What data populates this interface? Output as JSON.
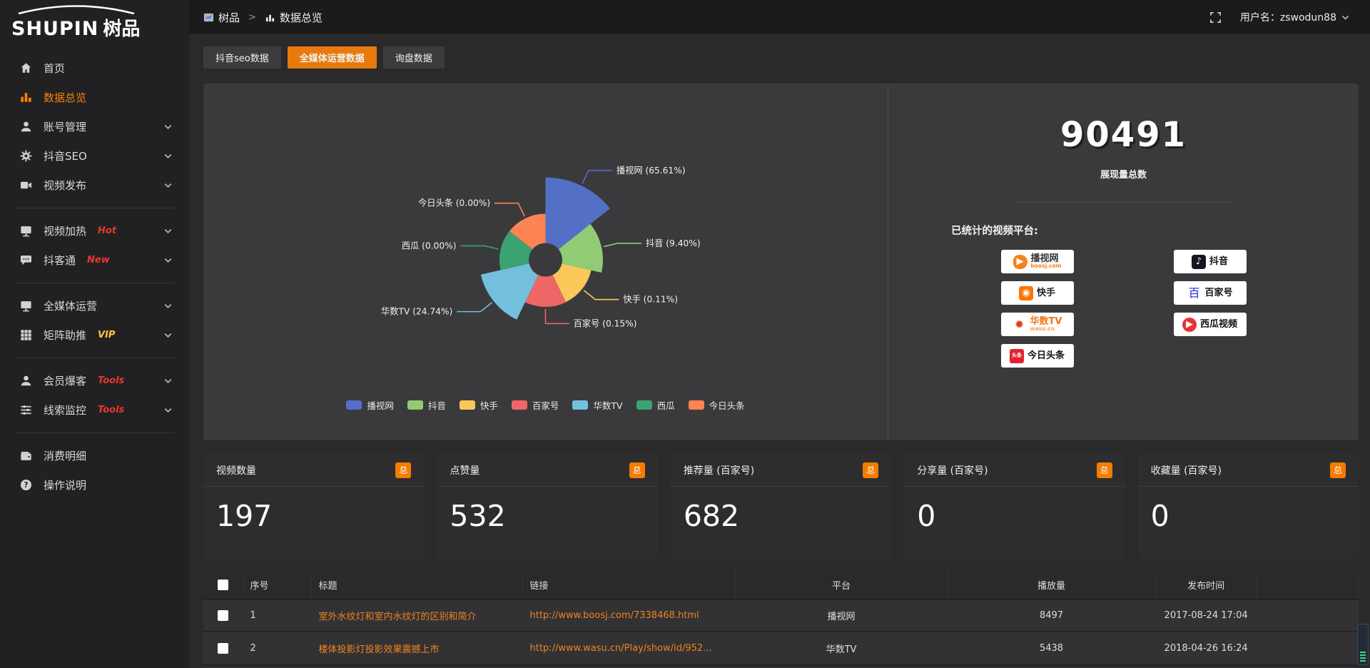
{
  "colors": {
    "accent_orange": "#e8790c",
    "badge_orange": "#f57c00",
    "link_orange": "#f0831e",
    "hot_red": "#e8372c",
    "vip_yellow": "#ffc93c"
  },
  "sidebar": {
    "logo_en": "SHUPIN",
    "logo_cn": "树品",
    "items": [
      {
        "label": "首页",
        "icon": "home-icon"
      },
      {
        "label": "数据总览",
        "icon": "chart-icon",
        "active": true
      },
      {
        "label": "账号管理",
        "icon": "user-icon",
        "chevron": true
      },
      {
        "label": "抖音SEO",
        "icon": "gear-icon",
        "chevron": true
      },
      {
        "label": "视频发布",
        "icon": "video-icon",
        "chevron": true,
        "divider_after": true
      },
      {
        "label": "视频加热",
        "icon": "screen-icon",
        "badge": "Hot",
        "badge_style": "red",
        "chevron": true
      },
      {
        "label": "抖客通",
        "icon": "chat-icon",
        "badge": "New",
        "badge_style": "red",
        "chevron": true,
        "divider_after": true
      },
      {
        "label": "全媒体运营",
        "icon": "monitor-icon",
        "chevron": true
      },
      {
        "label": "矩阵助推",
        "icon": "grid-icon",
        "badge": "VIP",
        "badge_style": "vip",
        "chevron": true,
        "divider_after": true
      },
      {
        "label": "会员爆客",
        "icon": "member-icon",
        "badge": "Tools",
        "badge_style": "red",
        "chevron": true
      },
      {
        "label": "线索监控",
        "icon": "sliders-icon",
        "badge": "Tools",
        "badge_style": "red",
        "chevron": true,
        "divider_after": true
      },
      {
        "label": "消费明细",
        "icon": "wallet-icon"
      },
      {
        "label": "操作说明",
        "icon": "question-icon"
      }
    ]
  },
  "topbar": {
    "breadcrumb": {
      "root": "树品",
      "separator": ">",
      "current": "数据总览"
    },
    "username": "用户名：zswodun88"
  },
  "tabs": [
    {
      "label": "抖音seo数据",
      "active": false
    },
    {
      "label": "全媒体运营数据",
      "active": true
    },
    {
      "label": "询盘数据",
      "active": false
    }
  ],
  "chart_data": {
    "type": "pie",
    "style": "rose",
    "legend_position": "bottom",
    "slices": [
      {
        "name": "播视网",
        "percent": 65.61,
        "label": "播视网 (65.61%)",
        "color": "#5470c6"
      },
      {
        "name": "抖音",
        "percent": 9.4,
        "label": "抖音 (9.40%)",
        "color": "#91cc75"
      },
      {
        "name": "快手",
        "percent": 0.11,
        "label": "快手 (0.11%)",
        "color": "#fac858"
      },
      {
        "name": "百家号",
        "percent": 0.15,
        "label": "百家号 (0.15%)",
        "color": "#ee6666"
      },
      {
        "name": "华数TV",
        "percent": 24.74,
        "label": "华数TV (24.74%)",
        "color": "#73c0de"
      },
      {
        "name": "西瓜",
        "percent": 0.0,
        "label": "西瓜 (0.00%)",
        "color": "#3ba272"
      },
      {
        "name": "今日头条",
        "percent": 0.0,
        "label": "今日头条 (0.00%)",
        "color": "#fc8452"
      }
    ]
  },
  "summary": {
    "total": "90491",
    "total_label": "展现量总数",
    "platforms_label": "已统计的视频平台:",
    "platform_badges": [
      {
        "name": "播视网",
        "sub": "boosj.com",
        "icon": "boosj-logo",
        "shape": "blob",
        "bg": "#f5821f",
        "glyph": "▶",
        "glyph_color": "#ffffff",
        "name_color": "#333333",
        "sub_color": "#f5821f"
      },
      {
        "name": "抖音",
        "icon": "douyin-logo",
        "shape": "square",
        "bg": "#16161f",
        "glyph": "♪",
        "glyph_color": "#ffffff",
        "name_color": "#111111"
      },
      {
        "name": "快手",
        "icon": "kuaishou-logo",
        "shape": "square",
        "bg": "#ff7300",
        "glyph": "◉",
        "glyph_color": "#ffffff",
        "name_color": "#222222"
      },
      {
        "name": "百家号",
        "icon": "baijiahao-logo",
        "shape": "none",
        "bg": "#ffffff",
        "glyph": "百",
        "glyph_color": "#1f2ae0",
        "name_color": "#111111"
      },
      {
        "name": "华数TV",
        "sub": "wasu.cn",
        "icon": "wasu-logo",
        "shape": "none",
        "bg": "#ffffff",
        "glyph": "✹",
        "glyph_color": "#e03c1e",
        "name_color": "#f0741e",
        "sub_color": "#f0a050"
      },
      {
        "name": "西瓜视频",
        "icon": "xigua-logo",
        "shape": "circle",
        "bg": "#e73234",
        "glyph": "▶",
        "glyph_color": "#ffffff",
        "name_color": "#111111"
      },
      {
        "name": "今日头条",
        "icon": "toutiao-logo",
        "shape": "tt",
        "bg": "#e0232e",
        "glyph": "头条",
        "glyph_color": "#ffffff",
        "name_color": "#111111"
      }
    ]
  },
  "stat_cards": [
    {
      "label": "视频数量",
      "tag": "总",
      "value": "197"
    },
    {
      "label": "点赞量",
      "tag": "总",
      "value": "532"
    },
    {
      "label": "推荐量 (百家号)",
      "tag": "总",
      "value": "682"
    },
    {
      "label": "分享量 (百家号)",
      "tag": "总",
      "value": "0"
    },
    {
      "label": "收藏量 (百家号)",
      "tag": "总",
      "value": "0"
    }
  ],
  "table": {
    "headers": [
      "序号",
      "标题",
      "链接",
      "平台",
      "播放量",
      "发布时间"
    ],
    "rows": [
      {
        "no": "1",
        "title": "室外水纹灯和室内水纹灯的区别和简介",
        "link": "http://www.boosj.com/7338468.html",
        "platform": "播视网",
        "views": "8497",
        "time": "2017-08-24 17:04"
      },
      {
        "no": "2",
        "title": "楼体投影灯投影效果震撼上市",
        "link": "http://www.wasu.cn/Play/show/id/952...",
        "platform": "华数TV",
        "views": "5438",
        "time": "2018-04-26 16:24"
      }
    ]
  }
}
